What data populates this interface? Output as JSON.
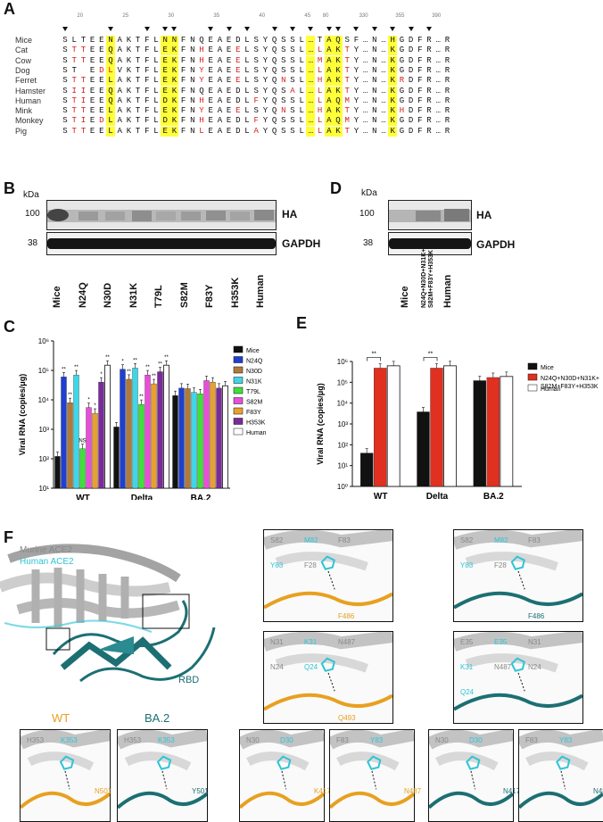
{
  "panel_labels": {
    "a": "A",
    "b": "B",
    "c": "C",
    "d": "D",
    "e": "E",
    "f": "F"
  },
  "alignment": {
    "positions": [
      "20",
      "25",
      "30",
      "35",
      "40",
      "45",
      "80",
      "330",
      "355",
      "390"
    ],
    "species": [
      {
        "name": "Mice",
        "seq": "SLTEENAKTFLNNFNQEAEDLSYQSSL…TAQSF…N…HGDFR…R",
        "red": []
      },
      {
        "name": "Cat",
        "seq": "STTEEQAKTFLEKFNHEAEELSYQSSL…LAKTY…N…KGDFR…R",
        "red": [
          1,
          2,
          15,
          19,
          28,
          31
        ]
      },
      {
        "name": "Cow",
        "seq": "STTEEQAKTFLEKFNHEAEELSYQSSL…MAKTY…N…KGDFR…R",
        "red": [
          1,
          2,
          15,
          19,
          28,
          31
        ]
      },
      {
        "name": "Dog",
        "seq": "ST EDLVKTFLEKFNYEAEELSYQSSL…LAKTY…N…KGDFR…R",
        "red": [
          2,
          4,
          5,
          15,
          19,
          28,
          31
        ]
      },
      {
        "name": "Ferret",
        "seq": "STTEELAKTFLEKFNYEAEELSYQNSL…HAKTY…N…KRDFR…R",
        "red": [
          1,
          2,
          15,
          19,
          24,
          28,
          31,
          37
        ]
      },
      {
        "name": "Hamster",
        "seq": "SIIEEQAKTFLEKFNQEAEDLSYQSAL…LAKTY…N…KGDFR…R",
        "red": [
          1,
          2,
          25,
          28,
          31
        ]
      },
      {
        "name": "Human",
        "seq": "STIEEQAKTFLDKFNHEAEDLFYQSSL…LAQMY…N…KGDFR…R",
        "red": [
          1,
          2,
          15,
          21,
          28,
          31
        ]
      },
      {
        "name": "Mink",
        "seq": "STTEELAKTFLEKFNYEAEELSYQNSL…HAKTY…N…KHDFR…R",
        "red": [
          1,
          2,
          15,
          19,
          24,
          28,
          31,
          37
        ]
      },
      {
        "name": "Monkey",
        "seq": "STIEDLAKTFLDKFNHEAEDLFYQSSL…LAQMY…N…KGDFR…R",
        "red": [
          1,
          2,
          4,
          15,
          21,
          28,
          31
        ]
      },
      {
        "name": "Pig",
        "seq": "STTEELAKTFLEKFNLEAEDLAYQSSL…LAKTY…N…KGDFR…R",
        "red": [
          1,
          2,
          15,
          21,
          28,
          31
        ]
      }
    ]
  },
  "blot_b": {
    "kda_unit": "kDa",
    "kda_top": "100",
    "kda_bottom": "38",
    "band_top": "HA",
    "band_bottom": "GAPDH",
    "lanes": [
      "Mice",
      "N24Q",
      "N30D",
      "N31K",
      "T79L",
      "S82M",
      "F83Y",
      "H353K",
      "Human"
    ]
  },
  "blot_d": {
    "kda_unit": "kDa",
    "kda_top": "100",
    "kda_bottom": "38",
    "band_top": "HA",
    "band_bottom": "GAPDH",
    "lanes": [
      "Mice",
      "N24Q+N30D+N31K+\nS82M+F83Y+H353K",
      "Human"
    ]
  },
  "colors": {
    "mice": "#111111",
    "n24q": "#1f3fd0",
    "n30d": "#b07a3a",
    "n31k": "#3fd6e6",
    "t79l": "#3ee03a",
    "s82m": "#e84fd8",
    "f83y": "#e8a030",
    "h353k": "#7a2a9a",
    "human": "#ffffff",
    "combo": "#e03020",
    "wt_orange": "#e8a020",
    "ba2_teal": "#1c6f73",
    "cyan": "#2ec4d6",
    "highlight": "#ffff3a",
    "red_residue": "#d42020"
  },
  "chart_data": [
    {
      "type": "bar",
      "panel": "C",
      "ylabel": "Viral RNA (copies/μg)",
      "yscale": "log",
      "ylim": [
        10,
        1000000
      ],
      "yticks": [
        "10¹",
        "10²",
        "10³",
        "10⁴",
        "10⁵",
        "10⁶"
      ],
      "categories": [
        "WT",
        "Delta",
        "BA.2"
      ],
      "series": [
        {
          "name": "Mice",
          "values": [
            120,
            1200,
            14000
          ]
        },
        {
          "name": "N24Q",
          "values": [
            60000,
            110000,
            25000
          ]
        },
        {
          "name": "N30D",
          "values": [
            8000,
            50000,
            24000
          ]
        },
        {
          "name": "N31K",
          "values": [
            70000,
            120000,
            18000
          ]
        },
        {
          "name": "T79L",
          "values": [
            220,
            7000,
            16000
          ]
        },
        {
          "name": "S82M",
          "values": [
            5500,
            70000,
            45000
          ]
        },
        {
          "name": "F83Y",
          "values": [
            3500,
            35000,
            40000
          ]
        },
        {
          "name": "H353K",
          "values": [
            40000,
            90000,
            25000
          ]
        },
        {
          "name": "Human",
          "values": [
            150000,
            150000,
            30000
          ]
        }
      ],
      "annotations": [
        {
          "group": "WT",
          "text": [
            "**",
            "**",
            "**",
            "NS",
            "*",
            "*",
            "*",
            "**"
          ]
        },
        {
          "group": "Delta",
          "text": [
            "*",
            "**",
            "**",
            "**",
            "**",
            "**",
            "**",
            "**"
          ]
        }
      ],
      "legend_position": "right"
    },
    {
      "type": "bar",
      "panel": "E",
      "ylabel": "Viral RNA (copies/μg)",
      "yscale": "log",
      "ylim": [
        1,
        1000000
      ],
      "yticks": [
        "10⁰",
        "10¹",
        "10²",
        "10³",
        "10⁴",
        "10⁵",
        "10⁶"
      ],
      "categories": [
        "WT",
        "Delta",
        "BA.2"
      ],
      "series": [
        {
          "name": "Mice",
          "values": [
            40,
            3800,
            120000
          ]
        },
        {
          "name": "N24Q+N30D+N31K+\nS82M+F83Y+H353K",
          "values": [
            480000,
            480000,
            170000
          ]
        },
        {
          "name": "Human",
          "values": [
            620000,
            620000,
            190000
          ]
        }
      ],
      "annotations": [
        {
          "group": "WT",
          "text": "**"
        },
        {
          "group": "Delta",
          "text": "**"
        }
      ],
      "legend_position": "right"
    }
  ],
  "structure": {
    "legend_murine": "Murine ACE2",
    "legend_human": "Human ACE2",
    "rbd": "RBD",
    "wt_title": "WT",
    "ba2_title": "BA.2",
    "insets": [
      {
        "labels": [
          "S82",
          "M82",
          "F83",
          "Y83",
          "F28",
          "F486"
        ]
      },
      {
        "labels": [
          "S82",
          "M82",
          "F83",
          "Y83",
          "F28",
          "F486"
        ]
      },
      {
        "labels": [
          "N31",
          "K31",
          "N487",
          "N24",
          "Q24",
          "Q493"
        ]
      },
      {
        "labels": [
          "E35",
          "E35",
          "N31",
          "K31",
          "N487",
          "N24",
          "Q24",
          "R493"
        ]
      },
      {
        "labels": [
          "H353",
          "K353",
          "N501"
        ]
      },
      {
        "labels": [
          "H353",
          "K353",
          "Y501"
        ]
      },
      {
        "labels": [
          "N30",
          "D30",
          "K417"
        ]
      },
      {
        "labels": [
          "F83",
          "Y83",
          "N487"
        ]
      },
      {
        "labels": [
          "N30",
          "D30",
          "N417"
        ]
      },
      {
        "labels": [
          "F83",
          "Y83",
          "N487"
        ]
      }
    ]
  }
}
